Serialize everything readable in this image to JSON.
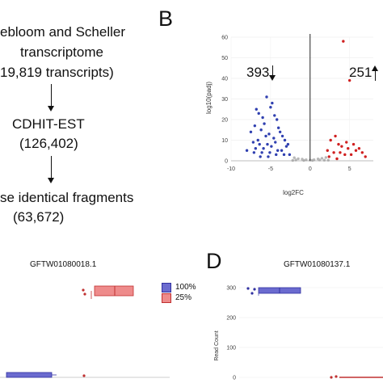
{
  "panel_a": {
    "line1": "ebloom and Scheller",
    "line2": "transcriptome",
    "line3": "19,819 transcripts)",
    "step2_name": "CDHIT-EST",
    "step2_count": "(126,402)",
    "step3_name": "se identical fragments",
    "step3_count": "(63,672)"
  },
  "panel_b": {
    "letter": "B",
    "down_count": "393",
    "up_count": "251",
    "chart_data": {
      "type": "scatter",
      "xlabel": "log2FC",
      "ylabel": "log10(padj)",
      "xlim": [
        -10,
        8
      ],
      "ylim": [
        0,
        60
      ],
      "x_ticks": [
        "-10",
        "-5",
        "0",
        "5"
      ],
      "y_ticks": [
        "0",
        "10",
        "20",
        "30",
        "40",
        "50",
        "60"
      ],
      "series": [
        {
          "group": "down",
          "color": "#3040b0",
          "x": [
            -5.5,
            -5.0,
            -4.8,
            -4.5,
            -6.8,
            -6.5,
            -4.2,
            -5.8,
            -6.0,
            -7.0,
            -7.5,
            -4.0,
            -3.8,
            -5.2,
            -6.2,
            -3.5,
            -4.6,
            -5.6,
            -6.6,
            -7.2,
            -3.2,
            -4.4,
            -5.4,
            -6.4,
            -3.0,
            -2.8,
            -4.9,
            -5.9,
            -6.9,
            -8.0,
            -3.6,
            -4.1,
            -5.1,
            -6.1,
            -7.1,
            -2.6,
            -3.3,
            -4.3,
            -5.3,
            -6.3
          ],
          "y": [
            31,
            26,
            28,
            22,
            25,
            23,
            20,
            18,
            21,
            17,
            14,
            16,
            14,
            13,
            15,
            12,
            11,
            12,
            10,
            9,
            10,
            9,
            8,
            8,
            7,
            8,
            7,
            6,
            6,
            5,
            5,
            5,
            4,
            4,
            4,
            3,
            3,
            3,
            2,
            2
          ]
        },
        {
          "group": "up",
          "color": "#d02020",
          "x": [
            4.2,
            5.0,
            3.2,
            4.6,
            5.5,
            2.6,
            3.6,
            4.0,
            4.8,
            5.8,
            6.2,
            2.2,
            3.0,
            3.8,
            4.4,
            5.2,
            6.6,
            7.0,
            2.4,
            3.4
          ],
          "y": [
            58,
            39,
            12,
            9,
            8,
            10,
            8,
            7,
            6,
            5,
            6,
            5,
            4,
            4,
            3,
            3,
            4,
            2,
            2,
            1
          ]
        },
        {
          "group": "ns",
          "color": "#b8b8b8",
          "x": [
            -2.0,
            -1.5,
            -1.0,
            -0.5,
            0.0,
            0.5,
            1.0,
            1.5,
            2.0,
            -1.8,
            -0.8,
            0.3,
            1.2,
            1.8,
            -2.2,
            2.3
          ],
          "y": [
            1.5,
            1.0,
            0.8,
            0.5,
            0.3,
            0.5,
            0.9,
            1.2,
            1.6,
            0.4,
            0.2,
            0.2,
            0.4,
            0.3,
            0.2,
            0.3
          ]
        }
      ]
    }
  },
  "panel_c": {
    "title": "GFTW01080018.1",
    "legend": [
      {
        "label": "100%",
        "color": "#6b6bcf"
      },
      {
        "label": "25%",
        "color": "#ee8b8b"
      }
    ]
  },
  "panel_d": {
    "letter": "D",
    "title": "GFTW01080137.1",
    "ylabel": "Read Count",
    "y_ticks": [
      "300",
      "200",
      "100",
      "0"
    ],
    "ylim": [
      0,
      300
    ]
  }
}
